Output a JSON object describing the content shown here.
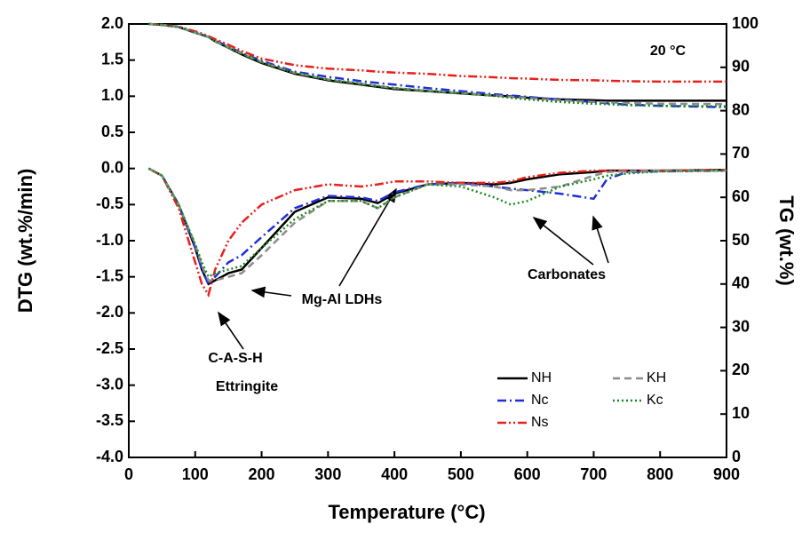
{
  "chart_data": {
    "type": "line",
    "x_label": "Temperature (°C)",
    "y_label": "DTG (wt.%/min)",
    "y2_label": "TG (wt.%)",
    "annotations": [
      "20 °C",
      "C-A-S-H",
      "Ettringite",
      "Mg-Al LDHs",
      "Carbonates"
    ],
    "x": [
      30,
      50,
      75,
      100,
      110,
      120,
      130,
      150,
      170,
      200,
      250,
      300,
      350,
      375,
      400,
      450,
      500,
      550,
      575,
      600,
      650,
      700,
      720,
      750,
      800,
      900
    ],
    "series": [
      {
        "name": "NH",
        "color": "#000000",
        "dash": "none",
        "values": [
          0,
          -0.1,
          -0.5,
          -1.1,
          -1.4,
          -1.6,
          -1.55,
          -1.45,
          -1.4,
          -1.1,
          -0.6,
          -0.4,
          -0.42,
          -0.48,
          -0.35,
          -0.22,
          -0.2,
          -0.22,
          -0.2,
          -0.15,
          -0.08,
          -0.05,
          -0.03,
          -0.03,
          -0.03,
          -0.02
        ],
        "tg": [
          100,
          99.8,
          99.3,
          98,
          97.5,
          97,
          96,
          94.5,
          93,
          91,
          88.5,
          87,
          86,
          85.5,
          85,
          84.5,
          84,
          83.5,
          83.3,
          83,
          82.6,
          82.4,
          82.3,
          82.3,
          82.3,
          82.3
        ]
      },
      {
        "name": "Nc",
        "color": "#1f2fd6",
        "dash": "10 4 2 4",
        "values": [
          0,
          -0.1,
          -0.5,
          -1.1,
          -1.4,
          -1.6,
          -1.5,
          -1.3,
          -1.2,
          -0.95,
          -0.55,
          -0.38,
          -0.4,
          -0.45,
          -0.33,
          -0.22,
          -0.2,
          -0.25,
          -0.28,
          -0.3,
          -0.35,
          -0.42,
          -0.15,
          -0.05,
          -0.04,
          -0.03
        ],
        "tg": [
          100,
          99.8,
          99.3,
          98,
          97.5,
          97,
          96.2,
          94.8,
          93.3,
          91.5,
          89,
          87.8,
          86.8,
          86.4,
          86,
          85.2,
          84.5,
          83.8,
          83.5,
          83.2,
          82.5,
          82,
          81.7,
          81.4,
          81.1,
          80.8
        ]
      },
      {
        "name": "Ns",
        "color": "#e8201a",
        "dash": "10 3 2 3 2 3",
        "values": [
          0,
          -0.1,
          -0.55,
          -1.3,
          -1.6,
          -1.75,
          -1.4,
          -1.0,
          -0.75,
          -0.5,
          -0.3,
          -0.22,
          -0.25,
          -0.22,
          -0.18,
          -0.18,
          -0.2,
          -0.2,
          -0.18,
          -0.12,
          -0.06,
          -0.03,
          -0.03,
          -0.03,
          -0.03,
          -0.02
        ],
        "tg": [
          100,
          99.8,
          99.4,
          98.3,
          97.8,
          97.2,
          96.5,
          95.2,
          93.8,
          92,
          90.5,
          89.7,
          89.3,
          89,
          88.8,
          88.5,
          88,
          87.7,
          87.5,
          87.4,
          87.1,
          87,
          86.9,
          86.8,
          86.7,
          86.7
        ]
      },
      {
        "name": "KH",
        "color": "#8c8c8c",
        "dash": "8 5",
        "values": [
          0,
          -0.1,
          -0.5,
          -1.05,
          -1.35,
          -1.55,
          -1.55,
          -1.5,
          -1.45,
          -1.2,
          -0.75,
          -0.45,
          -0.45,
          -0.55,
          -0.4,
          -0.22,
          -0.22,
          -0.25,
          -0.3,
          -0.3,
          -0.25,
          -0.1,
          -0.05,
          -0.04,
          -0.03,
          -0.03
        ],
        "tg": [
          100,
          99.8,
          99.3,
          98,
          97.5,
          97,
          96,
          94.6,
          93.2,
          91.2,
          88.7,
          87.2,
          86.2,
          85.7,
          85.2,
          84.6,
          84.1,
          83.5,
          83.2,
          82.9,
          82.4,
          82,
          81.9,
          81.8,
          81.6,
          81.5
        ]
      },
      {
        "name": "Kc",
        "color": "#1a8a1a",
        "dash": "2 3",
        "values": [
          0,
          -0.1,
          -0.5,
          -1.05,
          -1.3,
          -1.5,
          -1.45,
          -1.4,
          -1.35,
          -1.1,
          -0.7,
          -0.45,
          -0.45,
          -0.55,
          -0.4,
          -0.22,
          -0.25,
          -0.4,
          -0.5,
          -0.45,
          -0.25,
          -0.15,
          -0.1,
          -0.07,
          -0.04,
          -0.03
        ],
        "tg": [
          100,
          99.8,
          99.3,
          98,
          97.5,
          97,
          96,
          94.6,
          93.2,
          91.2,
          88.7,
          87.2,
          86.2,
          85.7,
          85.2,
          84.6,
          84,
          83.4,
          83,
          82.6,
          82,
          81.6,
          81.5,
          81.3,
          81.1,
          81
        ]
      }
    ],
    "xlim": [
      0,
      900
    ],
    "xticks": [
      0,
      100,
      200,
      300,
      400,
      500,
      600,
      700,
      800,
      900
    ],
    "ylim": [
      -4,
      2
    ],
    "yticks": [
      {
        "value": -4,
        "label": "-4.0"
      },
      -3.5,
      {
        "value": -3,
        "label": "-3.0"
      },
      -2.5,
      {
        "value": -2,
        "label": "-2.0"
      },
      -1.5,
      {
        "value": -1,
        "label": "-1.0"
      },
      -0.5,
      {
        "value": 0,
        "label": "0.0"
      },
      0.5,
      {
        "value": 1,
        "label": "1.0"
      },
      1.5,
      {
        "value": 2,
        "label": "2.0"
      }
    ],
    "y2lim": [
      0,
      100
    ],
    "y2ticks": [
      0,
      10,
      20,
      30,
      40,
      50,
      60,
      70,
      80,
      90,
      100
    ],
    "grid": false
  }
}
